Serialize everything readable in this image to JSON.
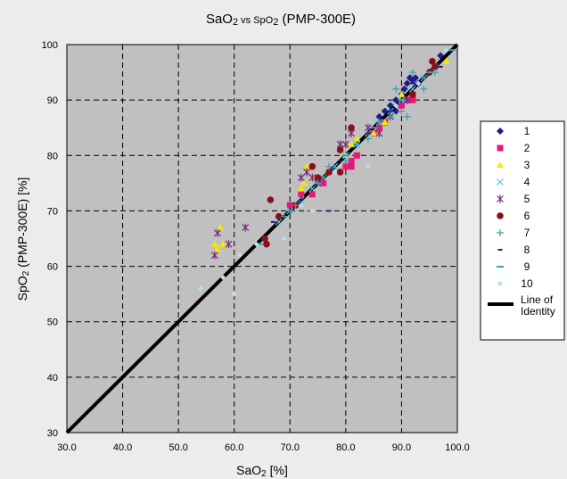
{
  "chart_data": {
    "type": "scatter",
    "title": {
      "main": "SaO",
      "sub1": "2",
      "mid": " vs SpO",
      "sub2": "2",
      "tail": " (PMP-300E)"
    },
    "xlabel": {
      "main": "SaO",
      "sub": "2",
      "tail": " [%]"
    },
    "ylabel": {
      "main": "SpO",
      "sub": "2",
      "tail": " (PMP-300E) [%]"
    },
    "xlim": [
      30,
      100
    ],
    "ylim": [
      30,
      100
    ],
    "x_ticks": [
      "30.0",
      "40.0",
      "50.0",
      "60.0",
      "70.0",
      "80.0",
      "90.0",
      "100.0"
    ],
    "y_ticks": [
      "30",
      "40",
      "50",
      "60",
      "70",
      "80",
      "90",
      "100"
    ],
    "grid": true,
    "legend_position": "right",
    "identity_line": {
      "name_line1": "Line of",
      "name_line2": "Identity",
      "from": [
        30,
        30
      ],
      "to": [
        100,
        100
      ]
    },
    "series": [
      {
        "name": "1",
        "color": "#1c1c8c",
        "marker": "diamond",
        "points": [
          [
            86,
            87
          ],
          [
            88,
            89
          ],
          [
            89,
            90
          ],
          [
            90,
            91
          ],
          [
            90.5,
            92
          ],
          [
            91,
            93
          ],
          [
            91.5,
            94
          ],
          [
            92,
            93.5
          ],
          [
            92.5,
            94
          ],
          [
            93,
            93
          ],
          [
            89,
            88
          ],
          [
            87,
            88
          ],
          [
            90,
            89
          ],
          [
            91,
            90
          ],
          [
            97,
            98
          ]
        ]
      },
      {
        "name": "2",
        "color": "#e6197a",
        "marker": "square",
        "points": [
          [
            70,
            71
          ],
          [
            72,
            73
          ],
          [
            74,
            73
          ],
          [
            76,
            75
          ],
          [
            80,
            78
          ],
          [
            81,
            79
          ],
          [
            81,
            78
          ],
          [
            82,
            80
          ],
          [
            85,
            84
          ],
          [
            86,
            85
          ],
          [
            87,
            86
          ],
          [
            91,
            90
          ],
          [
            92,
            90
          ],
          [
            92,
            91
          ],
          [
            90,
            89
          ]
        ]
      },
      {
        "name": "3",
        "color": "#f5ea00",
        "marker": "triangle",
        "points": [
          [
            56.5,
            64
          ],
          [
            57,
            63
          ],
          [
            57.5,
            67
          ],
          [
            58,
            64
          ],
          [
            72,
            74
          ],
          [
            72.5,
            75
          ],
          [
            73,
            78
          ],
          [
            74,
            76
          ],
          [
            80,
            80
          ],
          [
            81,
            82
          ],
          [
            82,
            83
          ],
          [
            85,
            84
          ],
          [
            87,
            86
          ],
          [
            90,
            91
          ],
          [
            98,
            97
          ]
        ]
      },
      {
        "name": "4",
        "color": "#55c8e0",
        "marker": "x",
        "points": [
          [
            68,
            68
          ],
          [
            70,
            70
          ],
          [
            72,
            72
          ],
          [
            74,
            74
          ],
          [
            76,
            76
          ],
          [
            78,
            78
          ],
          [
            80,
            80
          ],
          [
            82,
            82
          ],
          [
            84,
            84
          ],
          [
            86,
            86
          ],
          [
            88,
            88
          ],
          [
            90,
            90
          ],
          [
            92,
            92
          ],
          [
            94,
            94
          ],
          [
            96,
            96
          ]
        ]
      },
      {
        "name": "5",
        "color": "#7a2a7a",
        "marker": "star",
        "points": [
          [
            56.5,
            62
          ],
          [
            57,
            66
          ],
          [
            59,
            64
          ],
          [
            62,
            67
          ],
          [
            72,
            76
          ],
          [
            73,
            77
          ],
          [
            74,
            76
          ],
          [
            75,
            75
          ],
          [
            79,
            82
          ],
          [
            80,
            82
          ],
          [
            81,
            84
          ],
          [
            84,
            85
          ],
          [
            86,
            84
          ],
          [
            88,
            87
          ],
          [
            91,
            90
          ]
        ]
      },
      {
        "name": "6",
        "color": "#8b0f18",
        "marker": "circle",
        "points": [
          [
            65.5,
            65
          ],
          [
            65.8,
            64
          ],
          [
            66.5,
            72
          ],
          [
            68,
            69
          ],
          [
            71,
            71
          ],
          [
            74,
            78
          ],
          [
            75,
            76
          ],
          [
            77,
            77
          ],
          [
            79,
            77
          ],
          [
            79,
            81
          ],
          [
            81,
            85
          ],
          [
            92,
            91
          ],
          [
            95,
            95
          ],
          [
            95.5,
            97
          ],
          [
            96,
            96
          ]
        ]
      },
      {
        "name": "7",
        "color": "#3aa0a8",
        "marker": "plus",
        "points": [
          [
            69,
            69
          ],
          [
            71,
            71
          ],
          [
            75,
            75
          ],
          [
            77,
            78
          ],
          [
            80,
            79
          ],
          [
            82,
            82
          ],
          [
            84,
            83
          ],
          [
            86,
            86
          ],
          [
            88,
            87
          ],
          [
            89,
            92
          ],
          [
            90,
            88
          ],
          [
            91,
            87
          ],
          [
            92,
            95
          ],
          [
            94,
            92
          ],
          [
            96,
            95
          ]
        ]
      },
      {
        "name": "8",
        "color": "#1c1c8c",
        "marker": "shortdash",
        "points": [
          [
            67,
            68
          ],
          [
            72,
            72
          ],
          [
            77,
            70
          ],
          [
            79,
            79
          ],
          [
            84,
            84
          ],
          [
            88,
            88
          ],
          [
            92,
            93
          ],
          [
            97,
            96
          ]
        ]
      },
      {
        "name": "9",
        "color": "#3aa0c8",
        "marker": "dash",
        "points": [
          [
            64.5,
            64
          ],
          [
            70,
            70
          ],
          [
            75,
            75
          ],
          [
            80,
            80
          ],
          [
            85,
            85
          ],
          [
            90,
            90
          ],
          [
            95,
            95
          ],
          [
            99,
            99
          ]
        ]
      },
      {
        "name": "10",
        "color": "#b8e0ea",
        "marker": "smalldiamond",
        "points": [
          [
            54,
            56
          ],
          [
            58,
            58
          ],
          [
            60,
            55
          ],
          [
            61,
            62
          ],
          [
            64,
            64
          ],
          [
            69,
            65
          ],
          [
            72,
            71
          ],
          [
            74,
            70
          ],
          [
            78,
            77
          ],
          [
            84,
            78
          ],
          [
            89,
            89
          ],
          [
            93,
            93
          ],
          [
            98,
            99
          ]
        ]
      }
    ]
  }
}
